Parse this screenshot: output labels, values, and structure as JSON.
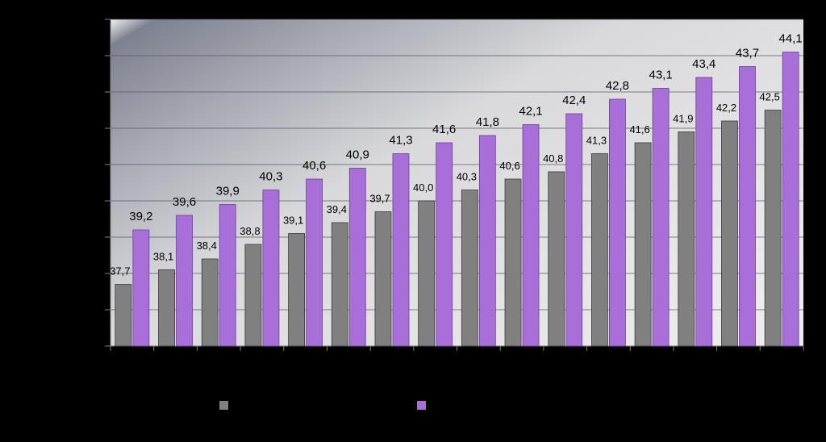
{
  "chart_data": {
    "type": "bar",
    "categories": [
      "",
      "",
      "",
      "",
      "",
      "",
      "",
      "",
      "",
      "",
      "",
      "",
      "",
      "",
      "",
      ""
    ],
    "series": [
      {
        "color": "#808080",
        "values": [
          37.7,
          38.1,
          38.4,
          38.8,
          39.1,
          39.4,
          39.7,
          40.0,
          40.3,
          40.6,
          40.8,
          41.3,
          41.6,
          41.9,
          42.2,
          42.5
        ],
        "labels": [
          "37,7",
          "38,1",
          "38,4",
          "38,8",
          "39,1",
          "39,4",
          "39,7",
          "40,0",
          "40,3",
          "40,6",
          "40,8",
          "41,3",
          "41,6",
          "41,9",
          "42,2",
          "42,5"
        ]
      },
      {
        "color": "#A86FD9",
        "values": [
          39.2,
          39.6,
          39.9,
          40.3,
          40.6,
          40.9,
          41.3,
          41.6,
          41.8,
          42.1,
          42.4,
          42.8,
          43.1,
          43.4,
          43.7,
          44.1
        ],
        "labels": [
          "39,2",
          "39,6",
          "39,9",
          "40,3",
          "40,6",
          "40,9",
          "41,3",
          "41,6",
          "41,8",
          "42,1",
          "42,4",
          "42,8",
          "43,1",
          "43,4",
          "43,7",
          "44,1"
        ]
      }
    ],
    "ylim": [
      36,
      45
    ],
    "grid": true,
    "legend": "bottom",
    "plot_background": "gradient gray-to-white"
  }
}
